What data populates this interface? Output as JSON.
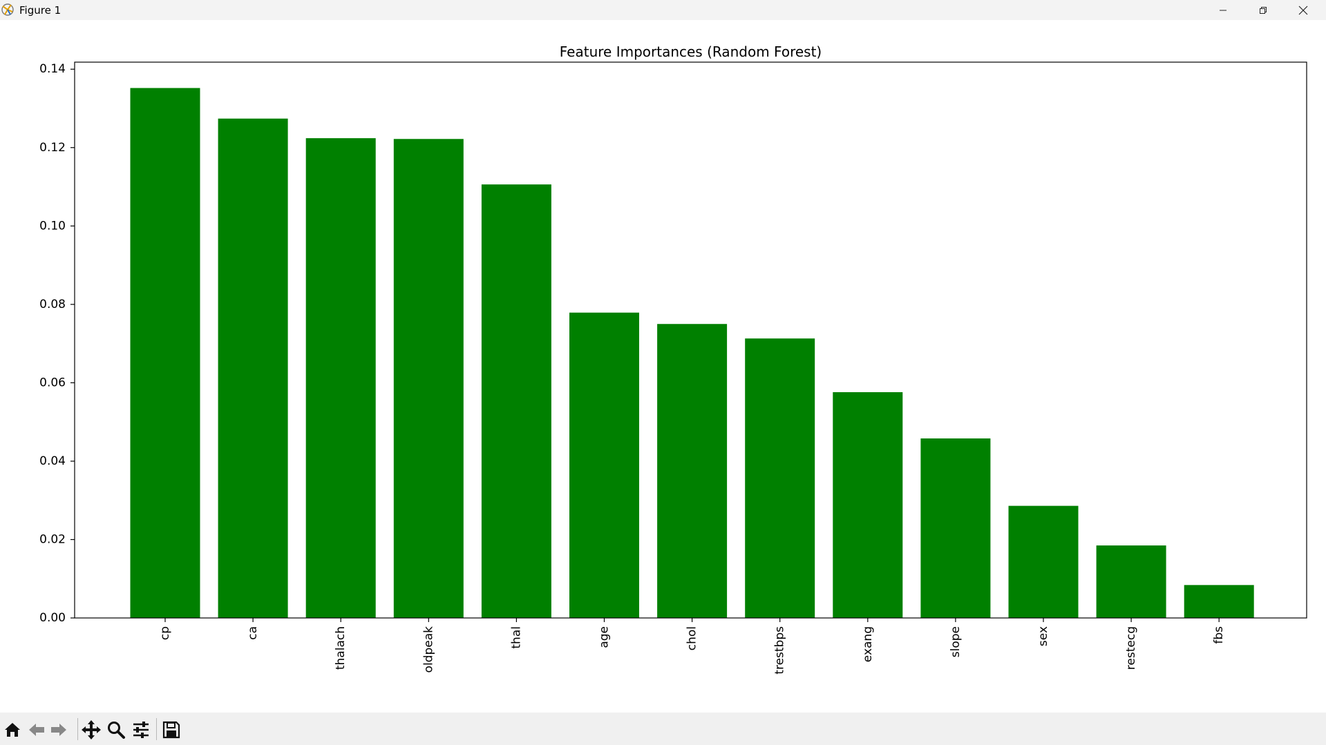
{
  "window": {
    "title": "Figure 1",
    "icons": [
      "app-icon",
      "minimize-icon",
      "maximize-icon",
      "close-icon"
    ]
  },
  "toolbar": {
    "icons": [
      "home-icon",
      "back-arrow-icon",
      "forward-arrow-icon",
      "pan-icon",
      "zoom-icon",
      "configure-subplots-icon",
      "save-icon"
    ]
  },
  "chart_data": {
    "type": "bar",
    "title": "Feature Importances (Random Forest)",
    "xlabel": "",
    "ylabel": "",
    "categories": [
      "cp",
      "ca",
      "thalach",
      "oldpeak",
      "thal",
      "age",
      "chol",
      "trestbps",
      "exang",
      "slope",
      "sex",
      "restecg",
      "fbs"
    ],
    "values": [
      0.1352,
      0.1274,
      0.1224,
      0.1222,
      0.1106,
      0.0779,
      0.075,
      0.0713,
      0.0576,
      0.0458,
      0.0286,
      0.0185,
      0.0084
    ],
    "ylim": [
      0,
      0.1418
    ],
    "yticks": [
      0.0,
      0.02,
      0.04,
      0.06,
      0.08,
      0.1,
      0.12,
      0.14
    ],
    "ytick_labels": [
      "0.00",
      "0.02",
      "0.04",
      "0.06",
      "0.08",
      "0.10",
      "0.12",
      "0.14"
    ],
    "tick_label_rotation": "vertical",
    "bar_color": "#008000",
    "grid": false,
    "legend": "none"
  }
}
